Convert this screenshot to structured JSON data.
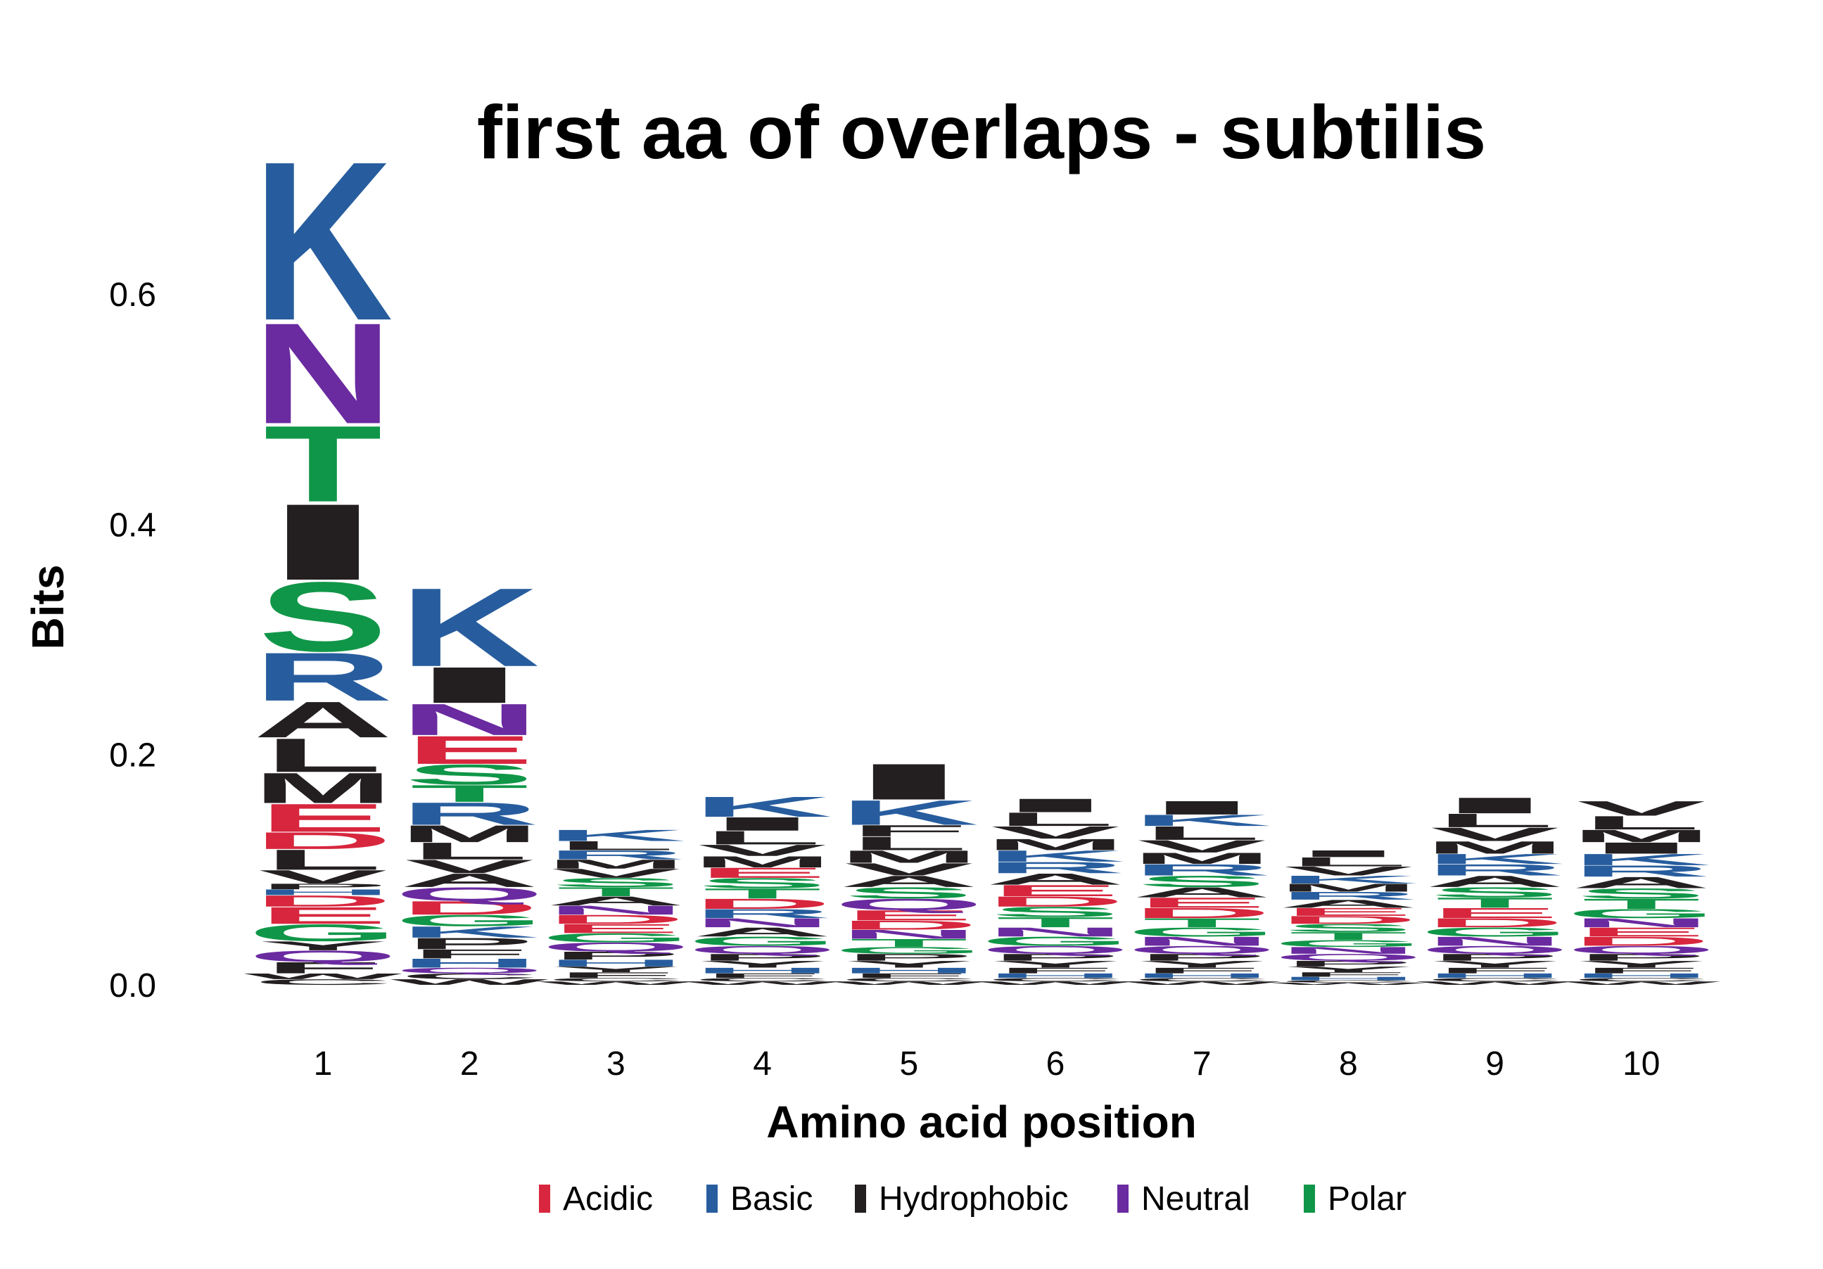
{
  "chart_data": {
    "type": "sequence-logo",
    "title": "first aa of overlaps - subtilis",
    "xlabel": "Amino acid position",
    "ylabel": "Bits",
    "ylim": [
      0,
      0.66
    ],
    "y_ticks": [
      "0.0",
      "0.2",
      "0.4",
      "0.6"
    ],
    "positions": [
      "1",
      "2",
      "3",
      "4",
      "5",
      "6",
      "7",
      "8",
      "9",
      "10"
    ],
    "legend": [
      {
        "label": "Acidic",
        "color": "#d7263d"
      },
      {
        "label": "Basic",
        "color": "#275d9e"
      },
      {
        "label": "Hydrophobic",
        "color": "#231f20"
      },
      {
        "label": "Neutral",
        "color": "#6a2aa0"
      },
      {
        "label": "Polar",
        "color": "#109648"
      }
    ],
    "stacks": [
      [
        [
          "C",
          0.005
        ],
        [
          "W",
          0.005
        ],
        [
          "F",
          0.01
        ],
        [
          "Q",
          0.01
        ],
        [
          "Y",
          0.008
        ],
        [
          "G",
          0.015
        ],
        [
          "E",
          0.015
        ],
        [
          "D",
          0.01
        ],
        [
          "H",
          0.005
        ],
        [
          "P",
          0.005
        ],
        [
          "V",
          0.012
        ],
        [
          "L",
          0.018
        ],
        [
          "D",
          0.015
        ],
        [
          "E",
          0.025
        ],
        [
          "M",
          0.027
        ],
        [
          "L",
          0.03
        ],
        [
          "A",
          0.032
        ],
        [
          "R",
          0.043
        ],
        [
          "S",
          0.062
        ],
        [
          "I",
          0.068
        ],
        [
          "T",
          0.068
        ],
        [
          "N",
          0.09
        ],
        [
          "K",
          0.142
        ]
      ],
      [
        [
          "W",
          0.005
        ],
        [
          "C",
          0.005
        ],
        [
          "Q",
          0.005
        ],
        [
          "H",
          0.008
        ],
        [
          "F",
          0.008
        ],
        [
          "P",
          0.01
        ],
        [
          "K",
          0.01
        ],
        [
          "G",
          0.01
        ],
        [
          "D",
          0.012
        ],
        [
          "Q",
          0.012
        ],
        [
          "A",
          0.012
        ],
        [
          "V",
          0.012
        ],
        [
          "L",
          0.015
        ],
        [
          "M",
          0.015
        ],
        [
          "R",
          0.02
        ],
        [
          "T",
          0.015
        ],
        [
          "S",
          0.018
        ],
        [
          "E",
          0.025
        ],
        [
          "N",
          0.028
        ],
        [
          "I",
          0.032
        ],
        [
          "K",
          0.07
        ]
      ],
      [
        [
          "W",
          0.003
        ],
        [
          "C",
          0.003
        ],
        [
          "F",
          0.005
        ],
        [
          "Y",
          0.005
        ],
        [
          "H",
          0.006
        ],
        [
          "P",
          0.007
        ],
        [
          "Q",
          0.008
        ],
        [
          "G",
          0.008
        ],
        [
          "E",
          0.008
        ],
        [
          "D",
          0.008
        ],
        [
          "N",
          0.008
        ],
        [
          "A",
          0.008
        ],
        [
          "T",
          0.008
        ],
        [
          "S",
          0.008
        ],
        [
          "V",
          0.008
        ],
        [
          "M",
          0.008
        ],
        [
          "R",
          0.008
        ],
        [
          "L",
          0.008
        ],
        [
          "K",
          0.01
        ]
      ],
      [
        [
          "W",
          0.003
        ],
        [
          "C",
          0.003
        ],
        [
          "F",
          0.004
        ],
        [
          "H",
          0.005
        ],
        [
          "Y",
          0.006
        ],
        [
          "P",
          0.006
        ],
        [
          "Q",
          0.007
        ],
        [
          "G",
          0.008
        ],
        [
          "A",
          0.008
        ],
        [
          "N",
          0.008
        ],
        [
          "R",
          0.008
        ],
        [
          "D",
          0.009
        ],
        [
          "T",
          0.009
        ],
        [
          "S",
          0.009
        ],
        [
          "E",
          0.009
        ],
        [
          "M",
          0.01
        ],
        [
          "V",
          0.01
        ],
        [
          "L",
          0.012
        ],
        [
          "I",
          0.012
        ],
        [
          "K",
          0.018
        ]
      ],
      [
        [
          "W",
          0.003
        ],
        [
          "C",
          0.003
        ],
        [
          "F",
          0.004
        ],
        [
          "H",
          0.005
        ],
        [
          "Y",
          0.006
        ],
        [
          "P",
          0.006
        ],
        [
          "G",
          0.006
        ],
        [
          "T",
          0.007
        ],
        [
          "N",
          0.008
        ],
        [
          "D",
          0.008
        ],
        [
          "E",
          0.009
        ],
        [
          "Q",
          0.01
        ],
        [
          "S",
          0.01
        ],
        [
          "A",
          0.01
        ],
        [
          "V",
          0.011
        ],
        [
          "M",
          0.011
        ],
        [
          "L",
          0.012
        ],
        [
          "F",
          0.01
        ],
        [
          "K",
          0.022
        ],
        [
          "I",
          0.032
        ]
      ],
      [
        [
          "W",
          0.003
        ],
        [
          "C",
          0.003
        ],
        [
          "H",
          0.004
        ],
        [
          "F",
          0.005
        ],
        [
          "Y",
          0.006
        ],
        [
          "P",
          0.006
        ],
        [
          "Q",
          0.007
        ],
        [
          "G",
          0.008
        ],
        [
          "N",
          0.008
        ],
        [
          "T",
          0.009
        ],
        [
          "S",
          0.009
        ],
        [
          "D",
          0.009
        ],
        [
          "E",
          0.01
        ],
        [
          "A",
          0.01
        ],
        [
          "R",
          0.01
        ],
        [
          "K",
          0.01
        ],
        [
          "M",
          0.01
        ],
        [
          "V",
          0.011
        ],
        [
          "L",
          0.012
        ],
        [
          "I",
          0.012
        ]
      ],
      [
        [
          "W",
          0.003
        ],
        [
          "C",
          0.003
        ],
        [
          "H",
          0.004
        ],
        [
          "F",
          0.005
        ],
        [
          "Y",
          0.006
        ],
        [
          "P",
          0.006
        ],
        [
          "Q",
          0.007
        ],
        [
          "N",
          0.008
        ],
        [
          "G",
          0.008
        ],
        [
          "T",
          0.008
        ],
        [
          "D",
          0.009
        ],
        [
          "E",
          0.009
        ],
        [
          "A",
          0.009
        ],
        [
          "S",
          0.01
        ],
        [
          "R",
          0.01
        ],
        [
          "M",
          0.01
        ],
        [
          "V",
          0.011
        ],
        [
          "L",
          0.012
        ],
        [
          "K",
          0.01
        ],
        [
          "I",
          0.012
        ]
      ],
      [
        [
          "W",
          0.002
        ],
        [
          "C",
          0.002
        ],
        [
          "H",
          0.003
        ],
        [
          "F",
          0.004
        ],
        [
          "Y",
          0.005
        ],
        [
          "P",
          0.005
        ],
        [
          "Q",
          0.006
        ],
        [
          "N",
          0.006
        ],
        [
          "G",
          0.006
        ],
        [
          "T",
          0.007
        ],
        [
          "S",
          0.007
        ],
        [
          "D",
          0.007
        ],
        [
          "E",
          0.007
        ],
        [
          "A",
          0.007
        ],
        [
          "R",
          0.007
        ],
        [
          "M",
          0.007
        ],
        [
          "K",
          0.007
        ],
        [
          "V",
          0.008
        ],
        [
          "L",
          0.008
        ],
        [
          "I",
          0.006
        ]
      ],
      [
        [
          "W",
          0.003
        ],
        [
          "C",
          0.003
        ],
        [
          "H",
          0.004
        ],
        [
          "F",
          0.005
        ],
        [
          "Y",
          0.006
        ],
        [
          "P",
          0.006
        ],
        [
          "Q",
          0.007
        ],
        [
          "N",
          0.008
        ],
        [
          "G",
          0.008
        ],
        [
          "D",
          0.008
        ],
        [
          "E",
          0.009
        ],
        [
          "T",
          0.009
        ],
        [
          "S",
          0.009
        ],
        [
          "A",
          0.01
        ],
        [
          "R",
          0.01
        ],
        [
          "K",
          0.009
        ],
        [
          "M",
          0.011
        ],
        [
          "V",
          0.012
        ],
        [
          "L",
          0.012
        ],
        [
          "I",
          0.014
        ]
      ],
      [
        [
          "W",
          0.003
        ],
        [
          "C",
          0.003
        ],
        [
          "H",
          0.004
        ],
        [
          "F",
          0.005
        ],
        [
          "Y",
          0.006
        ],
        [
          "P",
          0.006
        ],
        [
          "Q",
          0.007
        ],
        [
          "D",
          0.008
        ],
        [
          "E",
          0.008
        ],
        [
          "N",
          0.008
        ],
        [
          "G",
          0.008
        ],
        [
          "T",
          0.009
        ],
        [
          "S",
          0.009
        ],
        [
          "A",
          0.01
        ],
        [
          "R",
          0.01
        ],
        [
          "K",
          0.01
        ],
        [
          "I",
          0.01
        ],
        [
          "M",
          0.011
        ],
        [
          "L",
          0.012
        ],
        [
          "V",
          0.013
        ]
      ]
    ]
  }
}
